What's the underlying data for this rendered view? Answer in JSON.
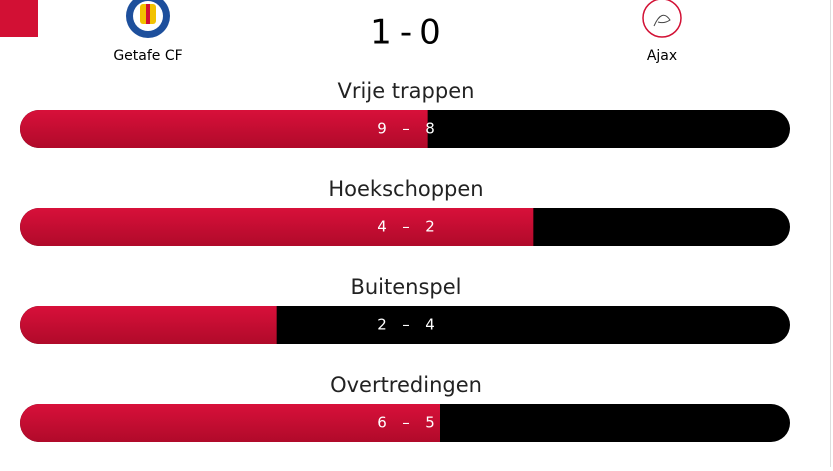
{
  "header": {
    "home_team": "Getafe CF",
    "away_team": "Ajax",
    "score": {
      "home": 1,
      "away": 0,
      "separator": "-"
    }
  },
  "stats": [
    {
      "label": "Vrije trappen",
      "home": 9,
      "away": 8
    },
    {
      "label": "Hoekschoppen",
      "home": 4,
      "away": 2
    },
    {
      "label": "Buitenspel",
      "home": 2,
      "away": 4
    },
    {
      "label": "Overtredingen",
      "home": 6,
      "away": 5
    }
  ],
  "value_separator": "–"
}
